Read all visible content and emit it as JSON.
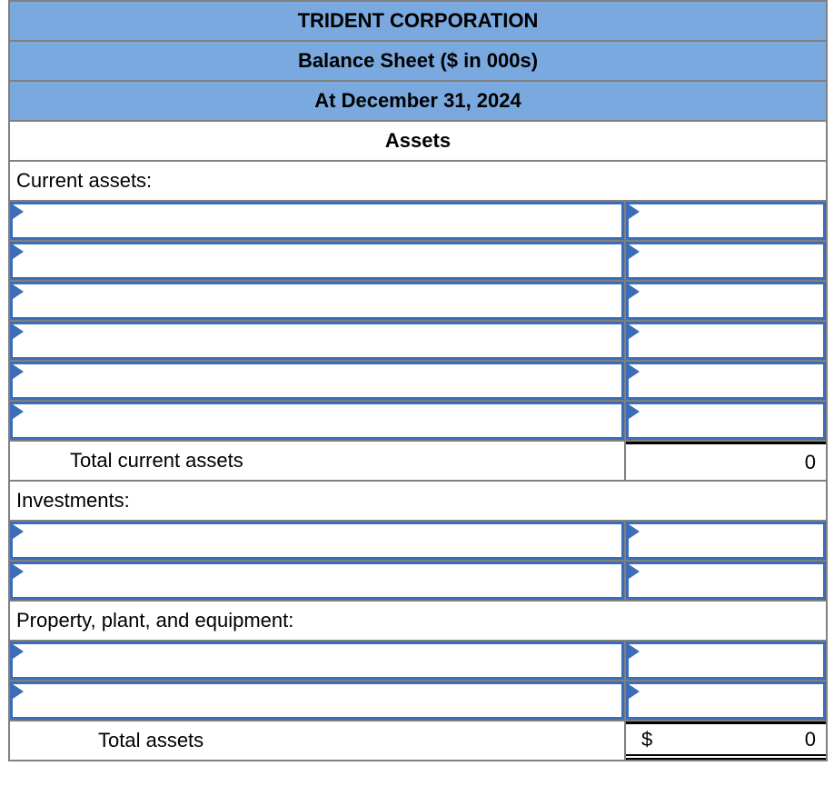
{
  "titles": {
    "company": "TRIDENT CORPORATION",
    "statement": "Balance Sheet ($ in 000s)",
    "date": "At December 31, 2024",
    "assets": "Assets"
  },
  "sections": {
    "current_assets": "Current assets:",
    "investments": "Investments:",
    "ppe": "Property, plant, and equipment:"
  },
  "totals": {
    "current": {
      "label": "Total current assets",
      "value": "0"
    },
    "grand": {
      "label": "Total assets",
      "currency": "$",
      "value": "0"
    }
  },
  "inputs": {
    "value": "",
    "placeholder": "",
    "current_assets_blank_rows": 6,
    "investments_blank_rows": 2,
    "ppe_blank_rows": 2
  },
  "icons": {
    "input_flag": "right-pointing-triangle-flag"
  },
  "colors": {
    "header_blue": "#7aa9df",
    "grid_gray": "#808080",
    "input_border_blue": "#3b6db8",
    "total_rule_black": "#000000"
  }
}
